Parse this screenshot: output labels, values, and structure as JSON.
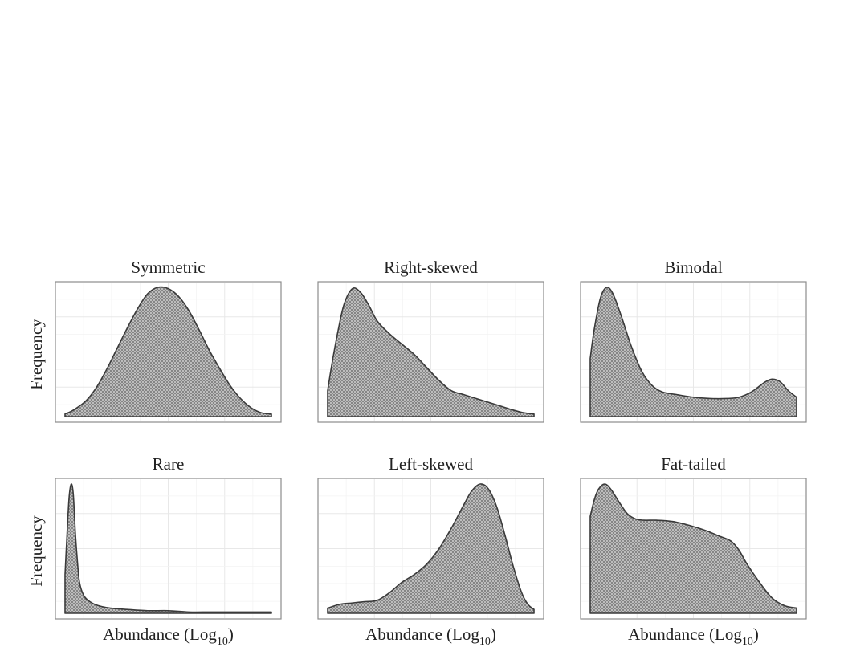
{
  "figure": {
    "xlabel_main": "Abundance (Log",
    "xlabel_sub": "10",
    "xlabel_close": ")",
    "ylabel": "Frequency"
  },
  "colors": {
    "fill_base": "#c9c9c9",
    "hatch": "#6e6e6e",
    "outline": "#3a3a3a",
    "frame": "#8c8c8c",
    "grid": "#e8e8e8"
  },
  "chart_data": [
    {
      "type": "area",
      "title": "Symmetric",
      "xlabel": "",
      "ylabel": "Frequency",
      "xlim": [
        0,
        1
      ],
      "ylim": [
        0,
        1
      ],
      "grid": true,
      "axis_ticks": false,
      "series": [
        {
          "x": [
            0.0,
            0.04,
            0.1,
            0.15,
            0.2,
            0.25,
            0.3,
            0.35,
            0.4,
            0.45,
            0.5,
            0.55,
            0.6,
            0.65,
            0.7,
            0.75,
            0.8,
            0.85,
            0.9,
            0.95,
            1.0
          ],
          "y": [
            0.02,
            0.05,
            0.12,
            0.22,
            0.36,
            0.52,
            0.68,
            0.83,
            0.95,
            1.0,
            0.99,
            0.93,
            0.82,
            0.67,
            0.51,
            0.37,
            0.24,
            0.14,
            0.07,
            0.03,
            0.02
          ]
        }
      ]
    },
    {
      "type": "area",
      "title": "Right-skewed",
      "xlabel": "",
      "ylabel": "",
      "xlim": [
        0,
        1
      ],
      "ylim": [
        0,
        1
      ],
      "grid": true,
      "axis_ticks": false,
      "series": [
        {
          "x": [
            0.0,
            0.02,
            0.05,
            0.08,
            0.12,
            0.16,
            0.2,
            0.24,
            0.3,
            0.36,
            0.42,
            0.48,
            0.54,
            0.6,
            0.66,
            0.72,
            0.78,
            0.84,
            0.9,
            0.95,
            1.0
          ],
          "y": [
            0.2,
            0.4,
            0.66,
            0.87,
            0.99,
            0.96,
            0.86,
            0.74,
            0.64,
            0.56,
            0.48,
            0.38,
            0.28,
            0.2,
            0.17,
            0.14,
            0.11,
            0.08,
            0.05,
            0.03,
            0.02
          ]
        }
      ]
    },
    {
      "type": "area",
      "title": "Bimodal",
      "xlabel": "",
      "ylabel": "",
      "xlim": [
        0,
        1
      ],
      "ylim": [
        0,
        1
      ],
      "grid": true,
      "axis_ticks": false,
      "series": [
        {
          "x": [
            0.0,
            0.02,
            0.05,
            0.08,
            0.11,
            0.15,
            0.2,
            0.25,
            0.3,
            0.35,
            0.42,
            0.5,
            0.58,
            0.66,
            0.72,
            0.78,
            0.84,
            0.88,
            0.92,
            0.96,
            1.0
          ],
          "y": [
            0.45,
            0.68,
            0.92,
            1.0,
            0.95,
            0.78,
            0.54,
            0.35,
            0.24,
            0.19,
            0.17,
            0.15,
            0.14,
            0.14,
            0.15,
            0.19,
            0.26,
            0.29,
            0.27,
            0.2,
            0.15
          ]
        }
      ]
    },
    {
      "type": "area",
      "title": "Rare",
      "xlabel": "Abundance (Log10)",
      "ylabel": "Frequency",
      "xlim": [
        0,
        1
      ],
      "ylim": [
        0,
        1
      ],
      "grid": true,
      "axis_ticks": false,
      "series": [
        {
          "x": [
            0.0,
            0.01,
            0.02,
            0.03,
            0.04,
            0.05,
            0.06,
            0.07,
            0.09,
            0.12,
            0.16,
            0.22,
            0.3,
            0.4,
            0.5,
            0.6,
            0.7,
            0.8,
            0.9,
            1.0
          ],
          "y": [
            0.3,
            0.62,
            0.9,
            1.0,
            0.92,
            0.62,
            0.4,
            0.24,
            0.14,
            0.09,
            0.06,
            0.04,
            0.03,
            0.02,
            0.02,
            0.01,
            0.01,
            0.01,
            0.01,
            0.01
          ]
        }
      ]
    },
    {
      "type": "area",
      "title": "Left-skewed",
      "xlabel": "Abundance (Log10)",
      "ylabel": "",
      "xlim": [
        0,
        1
      ],
      "ylim": [
        0,
        1
      ],
      "grid": true,
      "axis_ticks": false,
      "series": [
        {
          "x": [
            0.0,
            0.06,
            0.12,
            0.18,
            0.24,
            0.3,
            0.36,
            0.42,
            0.48,
            0.54,
            0.6,
            0.66,
            0.7,
            0.74,
            0.78,
            0.82,
            0.86,
            0.9,
            0.94,
            0.97,
            1.0
          ],
          "y": [
            0.04,
            0.07,
            0.08,
            0.09,
            0.1,
            0.16,
            0.24,
            0.3,
            0.38,
            0.5,
            0.66,
            0.84,
            0.95,
            1.0,
            0.96,
            0.82,
            0.6,
            0.36,
            0.16,
            0.07,
            0.03
          ]
        }
      ]
    },
    {
      "type": "area",
      "title": "Fat-tailed",
      "xlabel": "Abundance (Log10)",
      "ylabel": "",
      "xlim": [
        0,
        1
      ],
      "ylim": [
        0,
        1
      ],
      "grid": true,
      "axis_ticks": false,
      "series": [
        {
          "x": [
            0.0,
            0.02,
            0.04,
            0.07,
            0.1,
            0.14,
            0.18,
            0.22,
            0.26,
            0.32,
            0.4,
            0.48,
            0.56,
            0.62,
            0.68,
            0.72,
            0.76,
            0.82,
            0.88,
            0.94,
            1.0
          ],
          "y": [
            0.75,
            0.88,
            0.96,
            1.0,
            0.96,
            0.86,
            0.77,
            0.73,
            0.72,
            0.72,
            0.71,
            0.68,
            0.64,
            0.6,
            0.56,
            0.49,
            0.38,
            0.24,
            0.12,
            0.06,
            0.04
          ]
        }
      ]
    }
  ]
}
